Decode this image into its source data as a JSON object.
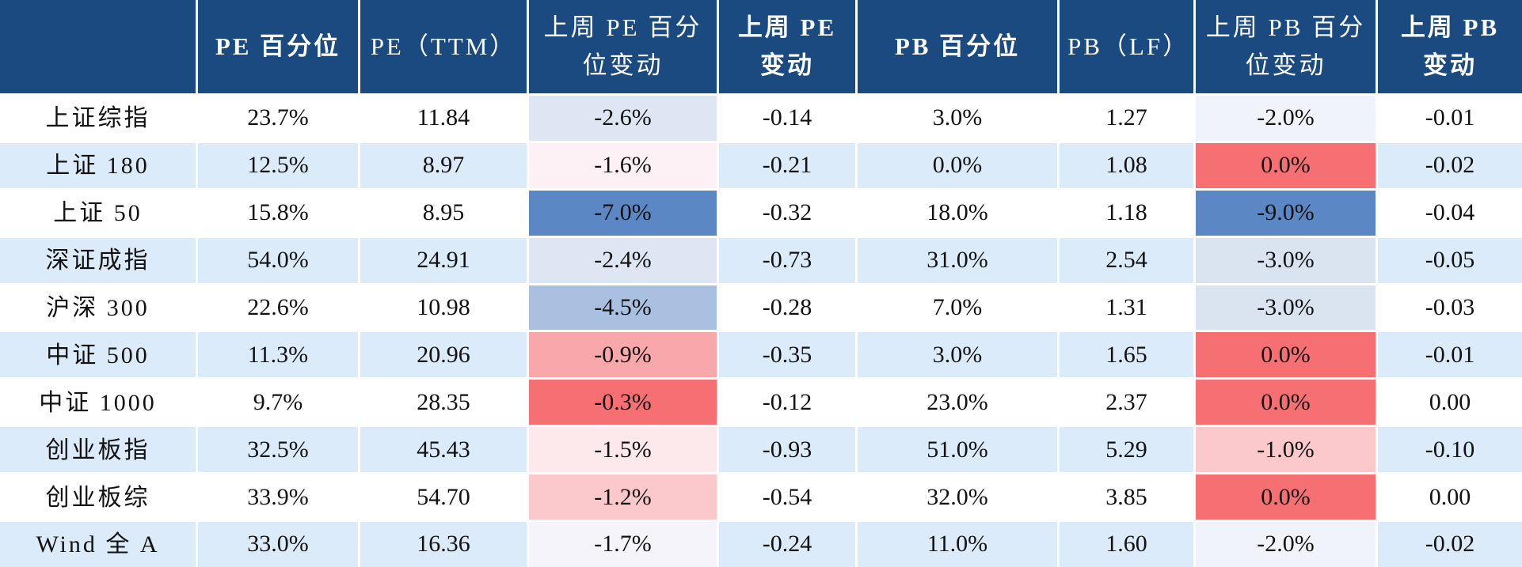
{
  "headers": [
    "",
    "PE 百分位",
    "PE（TTM）",
    "上周 PE 百分位变动",
    "上周 PE 变动",
    "PB 百分位",
    "PB（LF）",
    "上周 PB 百分位变动",
    "上周 PB 变动"
  ],
  "rows": [
    {
      "name": "上证综指",
      "pe_pct": "23.7%",
      "pe_ttm": "11.84",
      "pe_pct_chg": "-2.6%",
      "pe_chg": "-0.14",
      "pb_pct": "3.0%",
      "pb_lf": "1.27",
      "pb_pct_chg": "-2.0%",
      "pb_chg": "-0.01"
    },
    {
      "name": "上证 180",
      "pe_pct": "12.5%",
      "pe_ttm": "8.97",
      "pe_pct_chg": "-1.6%",
      "pe_chg": "-0.21",
      "pb_pct": "0.0%",
      "pb_lf": "1.08",
      "pb_pct_chg": "0.0%",
      "pb_chg": "-0.02"
    },
    {
      "name": "上证 50",
      "pe_pct": "15.8%",
      "pe_ttm": "8.95",
      "pe_pct_chg": "-7.0%",
      "pe_chg": "-0.32",
      "pb_pct": "18.0%",
      "pb_lf": "1.18",
      "pb_pct_chg": "-9.0%",
      "pb_chg": "-0.04"
    },
    {
      "name": "深证成指",
      "pe_pct": "54.0%",
      "pe_ttm": "24.91",
      "pe_pct_chg": "-2.4%",
      "pe_chg": "-0.73",
      "pb_pct": "31.0%",
      "pb_lf": "2.54",
      "pb_pct_chg": "-3.0%",
      "pb_chg": "-0.05"
    },
    {
      "name": "沪深 300",
      "pe_pct": "22.6%",
      "pe_ttm": "10.98",
      "pe_pct_chg": "-4.5%",
      "pe_chg": "-0.28",
      "pb_pct": "7.0%",
      "pb_lf": "1.31",
      "pb_pct_chg": "-3.0%",
      "pb_chg": "-0.03"
    },
    {
      "name": "中证 500",
      "pe_pct": "11.3%",
      "pe_ttm": "20.96",
      "pe_pct_chg": "-0.9%",
      "pe_chg": "-0.35",
      "pb_pct": "3.0%",
      "pb_lf": "1.65",
      "pb_pct_chg": "0.0%",
      "pb_chg": "-0.01"
    },
    {
      "name": "中证 1000",
      "pe_pct": "9.7%",
      "pe_ttm": "28.35",
      "pe_pct_chg": "-0.3%",
      "pe_chg": "-0.12",
      "pb_pct": "23.0%",
      "pb_lf": "2.37",
      "pb_pct_chg": "0.0%",
      "pb_chg": "0.00"
    },
    {
      "name": "创业板指",
      "pe_pct": "32.5%",
      "pe_ttm": "45.43",
      "pe_pct_chg": "-1.5%",
      "pe_chg": "-0.93",
      "pb_pct": "51.0%",
      "pb_lf": "5.29",
      "pb_pct_chg": "-1.0%",
      "pb_chg": "-0.10"
    },
    {
      "name": "创业板综",
      "pe_pct": "33.9%",
      "pe_ttm": "54.70",
      "pe_pct_chg": "-1.2%",
      "pe_chg": "-0.54",
      "pb_pct": "32.0%",
      "pb_lf": "3.85",
      "pb_pct_chg": "0.0%",
      "pb_chg": "0.00"
    },
    {
      "name": "Wind 全 A",
      "pe_pct": "33.0%",
      "pe_ttm": "16.36",
      "pe_pct_chg": "-1.7%",
      "pe_chg": "-0.24",
      "pb_pct": "11.0%",
      "pb_lf": "1.60",
      "pb_pct_chg": "-2.0%",
      "pb_chg": "-0.02"
    }
  ],
  "colors": {
    "header_bg": "#1a4a80",
    "stripe": "#dcebfa",
    "pe_pct_chg_fill": [
      "#dde6f2",
      "#fdf1f5",
      "#5b87c4",
      "#dde6f2",
      "#a9c0e0",
      "#f8a7ab",
      "#f56f73",
      "#fde8ec",
      "#fbc8cc",
      "#f4f4fa"
    ],
    "pb_pct_chg_fill": [
      "#f0f3f9",
      "#f56f73",
      "#5b87c4",
      "#dae3f0",
      "#dae3f0",
      "#f56f73",
      "#f56f73",
      "#fbc8cc",
      "#f56f73",
      "#f0f3f9"
    ]
  }
}
